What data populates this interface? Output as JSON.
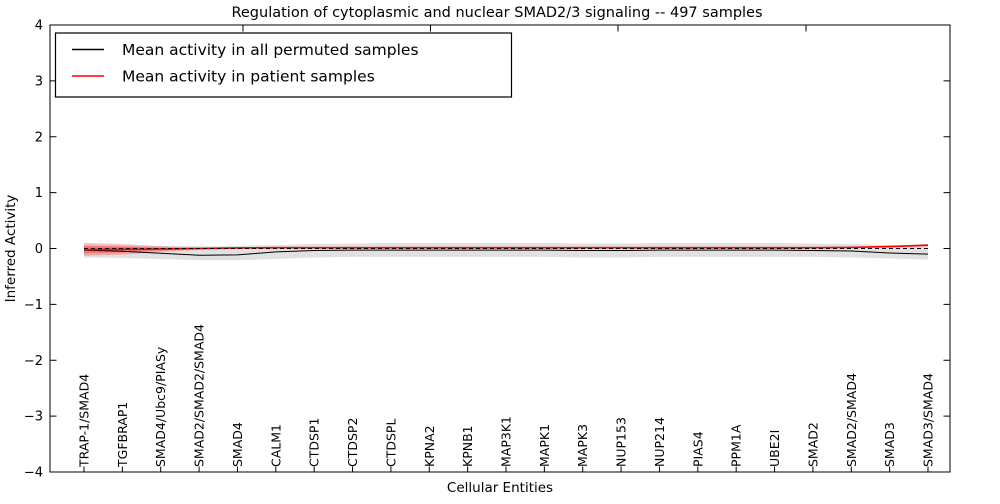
{
  "chart_data": {
    "type": "line",
    "title": "Regulation of cytoplasmic and nuclear SMAD2/3 signaling -- 497 samples",
    "xlabel": "Cellular Entities",
    "ylabel": "Inferred Activity",
    "ylim": [
      -4,
      4
    ],
    "grid": false,
    "legend_position": "upper-left",
    "yticks": {
      "values": [
        4,
        3,
        2,
        1,
        0,
        -1,
        -2,
        -3,
        -4
      ],
      "labels": [
        "4",
        "3",
        "2",
        "1",
        "0",
        "−1",
        "−2",
        "−3",
        "−4"
      ]
    },
    "categories": [
      "TRAP-1/SMAD4",
      "TGFBRAP1",
      "SMAD4/Ubc9/PIASy",
      "SMAD2/SMAD2/SMAD4",
      "SMAD4",
      "CALM1",
      "CTDSP1",
      "CTDSP2",
      "CTDSPL",
      "KPNA2",
      "KPNB1",
      "MAP3K1",
      "MAPK1",
      "MAPK3",
      "NUP153",
      "NUP214",
      "PIAS4",
      "PPM1A",
      "UBE2I",
      "SMAD2",
      "SMAD2/SMAD4",
      "SMAD3",
      "SMAD3/SMAD4"
    ],
    "series": [
      {
        "name": "Mean activity in all permuted samples",
        "color": "#000000",
        "width": 1.0,
        "values": [
          -0.03,
          -0.05,
          -0.085,
          -0.12,
          -0.115,
          -0.06,
          -0.035,
          -0.03,
          -0.03,
          -0.03,
          -0.03,
          -0.03,
          -0.03,
          -0.035,
          -0.035,
          -0.03,
          -0.03,
          -0.03,
          -0.03,
          -0.035,
          -0.045,
          -0.08,
          -0.1
        ]
      },
      {
        "name": "Mean activity in patient samples",
        "color": "#ff0000",
        "width": 1.6,
        "values": [
          -0.02,
          -0.015,
          -0.01,
          0.0,
          0.01,
          0.015,
          0.015,
          0.015,
          0.015,
          0.015,
          0.015,
          0.015,
          0.015,
          0.015,
          0.015,
          0.015,
          0.015,
          0.015,
          0.015,
          0.015,
          0.02,
          0.035,
          0.06
        ]
      }
    ],
    "bands": [
      {
        "name": "permuted-samples-spread-band",
        "color": "rgba(120,120,120,0.22)",
        "upper": [
          0.06,
          0.05,
          0.045,
          0.04,
          0.045,
          0.06,
          0.08,
          0.09,
          0.1,
          0.1,
          0.1,
          0.1,
          0.1,
          0.09,
          0.09,
          0.1,
          0.1,
          0.1,
          0.1,
          0.09,
          0.08,
          0.06,
          0.05
        ],
        "lower": [
          -0.16,
          -0.17,
          -0.19,
          -0.21,
          -0.21,
          -0.19,
          -0.16,
          -0.15,
          -0.15,
          -0.15,
          -0.15,
          -0.15,
          -0.15,
          -0.16,
          -0.16,
          -0.15,
          -0.15,
          -0.15,
          -0.15,
          -0.15,
          -0.16,
          -0.18,
          -0.2
        ]
      },
      {
        "name": "patient-samples-outer-band",
        "color": "rgba(255,30,30,0.28)",
        "upper": [
          0.1,
          0.08,
          0.04,
          0.02,
          0.025,
          0.03,
          0.03,
          0.03,
          0.03,
          0.03,
          0.03,
          0.03,
          0.03,
          0.03,
          0.03,
          0.03,
          0.03,
          0.03,
          0.03,
          0.03,
          0.035,
          0.05,
          0.08
        ],
        "lower": [
          -0.13,
          -0.11,
          -0.06,
          -0.025,
          -0.005,
          0.0,
          0.0,
          0.0,
          0.0,
          0.0,
          0.0,
          0.0,
          0.0,
          0.0,
          0.0,
          0.0,
          0.0,
          0.0,
          0.0,
          0.0,
          0.005,
          0.02,
          0.04
        ]
      },
      {
        "name": "patient-samples-inner-band",
        "color": "rgba(255,0,0,0.30)",
        "upper": [
          0.045,
          0.035,
          0.015,
          0.01,
          0.02,
          0.025,
          0.025,
          0.025,
          0.025,
          0.025,
          0.025,
          0.025,
          0.025,
          0.025,
          0.025,
          0.025,
          0.025,
          0.025,
          0.025,
          0.025,
          0.03,
          0.045,
          0.07
        ],
        "lower": [
          -0.085,
          -0.07,
          -0.035,
          -0.01,
          0.0,
          0.005,
          0.005,
          0.005,
          0.005,
          0.005,
          0.005,
          0.005,
          0.005,
          0.005,
          0.005,
          0.005,
          0.005,
          0.005,
          0.005,
          0.005,
          0.01,
          0.025,
          0.05
        ]
      }
    ],
    "zero_line": {
      "value": 0,
      "style": "dashed",
      "color": "#000000"
    }
  },
  "legend": {
    "entries": [
      {
        "label": "Mean activity in all permuted samples",
        "color": "#000000"
      },
      {
        "label": "Mean activity in patient samples",
        "color": "#ff0000"
      }
    ]
  }
}
